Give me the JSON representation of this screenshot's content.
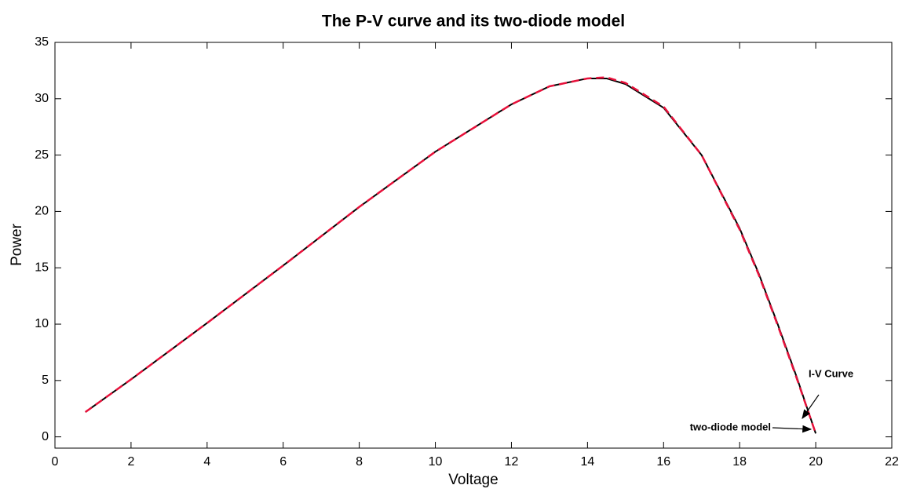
{
  "chart_data": {
    "type": "line",
    "title": "The P-V curve and its two-diode model",
    "x_label": "Voltage",
    "y_label": "Power",
    "x": [
      0.8,
      2,
      4,
      6,
      8,
      10,
      12,
      13,
      14,
      14.5,
      15,
      16,
      17,
      18,
      18.5,
      19,
      19.5,
      20
    ],
    "series": [
      {
        "name": "I-V Curve",
        "color": "#000000",
        "dash": false,
        "values": [
          2.2,
          5.1,
          10.1,
          15.2,
          20.4,
          25.3,
          29.5,
          31.1,
          31.8,
          31.8,
          31.3,
          29.2,
          25.0,
          18.5,
          14.5,
          10.0,
          5.3,
          0.3
        ]
      },
      {
        "name": "two-diode model",
        "color": "#e8103a",
        "dash": true,
        "values": [
          2.2,
          5.1,
          10.1,
          15.2,
          20.4,
          25.3,
          29.5,
          31.1,
          31.8,
          31.9,
          31.4,
          29.3,
          25.0,
          18.4,
          14.4,
          9.9,
          5.2,
          0.3
        ]
      }
    ],
    "xlim": [
      0,
      22
    ],
    "xticks": [
      0,
      2,
      4,
      6,
      8,
      10,
      12,
      14,
      16,
      18,
      20,
      22
    ],
    "ylim": [
      -1,
      35
    ],
    "yticks": [
      0,
      5,
      10,
      15,
      20,
      25,
      30,
      35
    ],
    "grid": false
  }
}
